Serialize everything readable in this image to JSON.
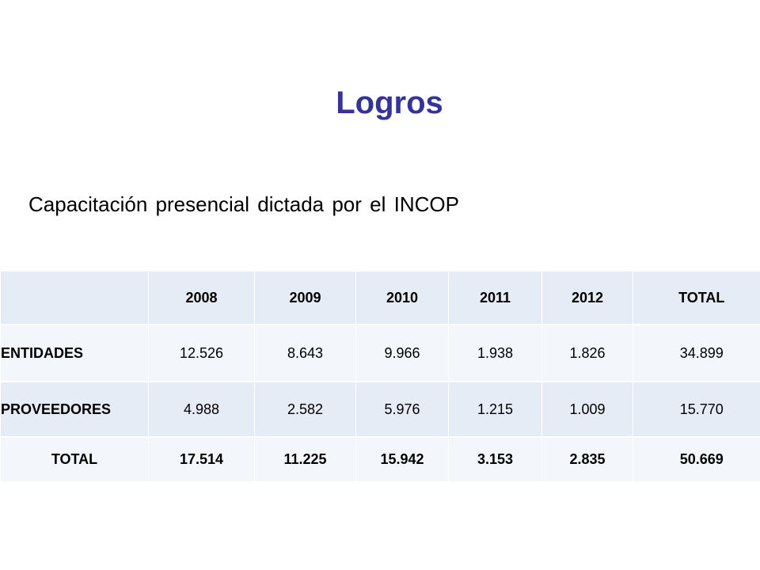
{
  "title": "Logros",
  "subtitle": "Capacitación presencial dictada por el INCOP",
  "table": {
    "headers": [
      "",
      "2008",
      "2009",
      "2010",
      "2011",
      "2012",
      "TOTAL"
    ],
    "rows": [
      {
        "label": "ENTIDADES",
        "values": [
          "12.526",
          "8.643",
          "9.966",
          "1.938",
          "1.826",
          "34.899"
        ]
      },
      {
        "label": "PROVEEDORES",
        "values": [
          "4.988",
          "2.582",
          "5.976",
          "1.215",
          "1.009",
          "15.770"
        ]
      },
      {
        "label": "TOTAL",
        "values": [
          "17.514",
          "11.225",
          "15.942",
          "3.153",
          "2.835",
          "50.669"
        ]
      }
    ]
  },
  "colors": {
    "title": "#333399",
    "row_band_dark": "#e6ecf5",
    "row_band_light": "#f3f6fa"
  }
}
